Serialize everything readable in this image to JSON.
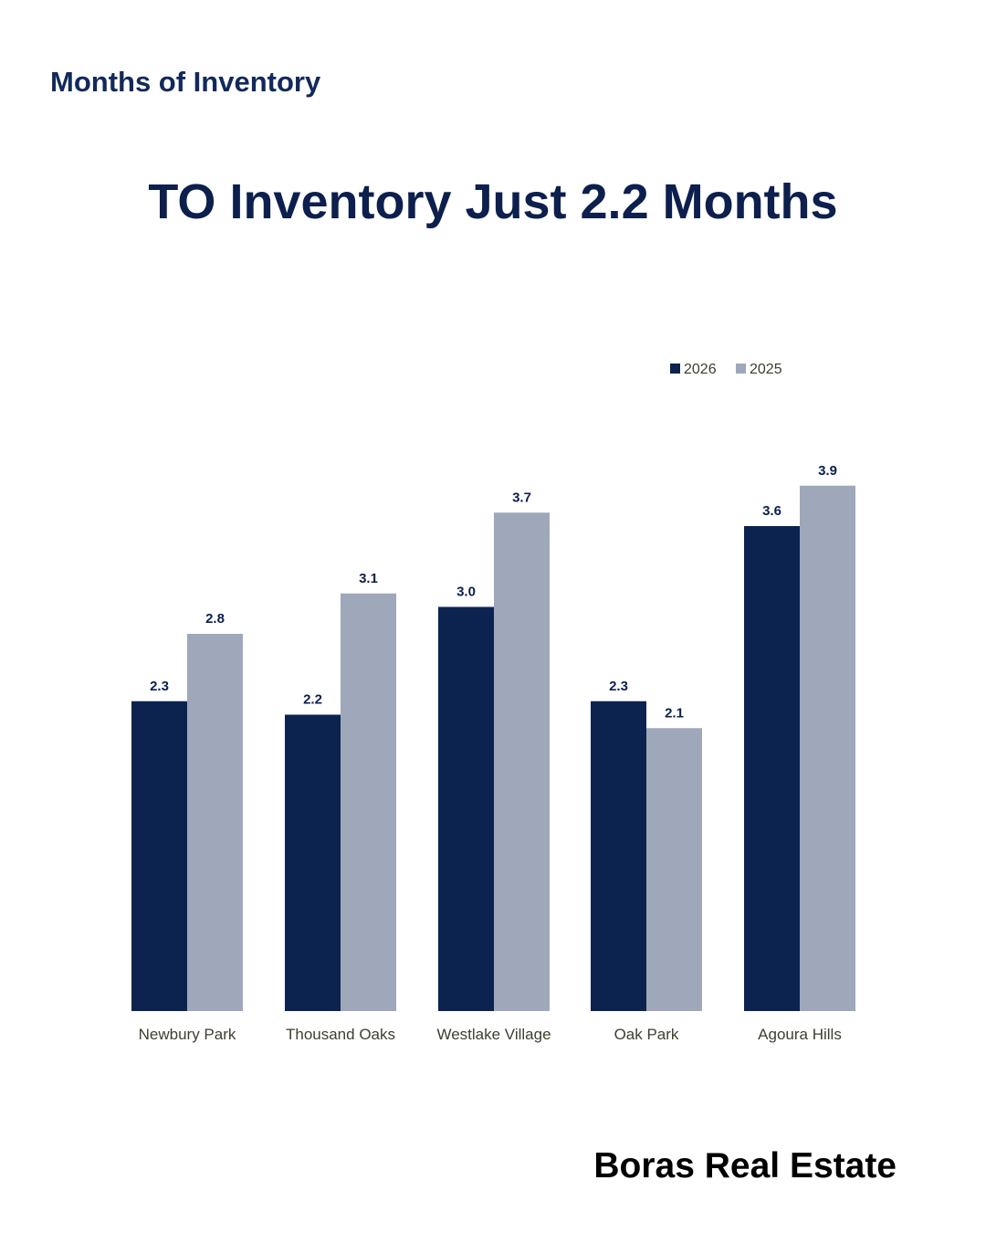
{
  "header": {
    "kicker": "Months of Inventory",
    "headline": "TO Inventory Just 2.2 Months"
  },
  "footer": {
    "brand": "Boras Real Estate"
  },
  "colors": {
    "series_2026": "#0c2350",
    "series_2025": "#9ea8ba",
    "value_label": "#0c1f4d",
    "category_label": "#3d3f2f"
  },
  "chart_data": {
    "type": "bar",
    "categories": [
      "Newbury Park",
      "Thousand Oaks",
      "Westlake Village",
      "Oak Park",
      "Agoura Hills"
    ],
    "series": [
      {
        "name": "2026",
        "values": [
          2.3,
          2.2,
          3.0,
          2.3,
          3.6
        ]
      },
      {
        "name": "2025",
        "values": [
          2.8,
          3.1,
          3.7,
          2.1,
          3.9
        ]
      }
    ],
    "value_labels": [
      [
        "2.3",
        "2.2",
        "3.0",
        "2.3",
        "3.6"
      ],
      [
        "2.8",
        "3.1",
        "3.7",
        "2.1",
        "3.9"
      ]
    ],
    "ylim": [
      0,
      4
    ],
    "grid": false,
    "legend_position": "top-right",
    "data_labels": true
  }
}
